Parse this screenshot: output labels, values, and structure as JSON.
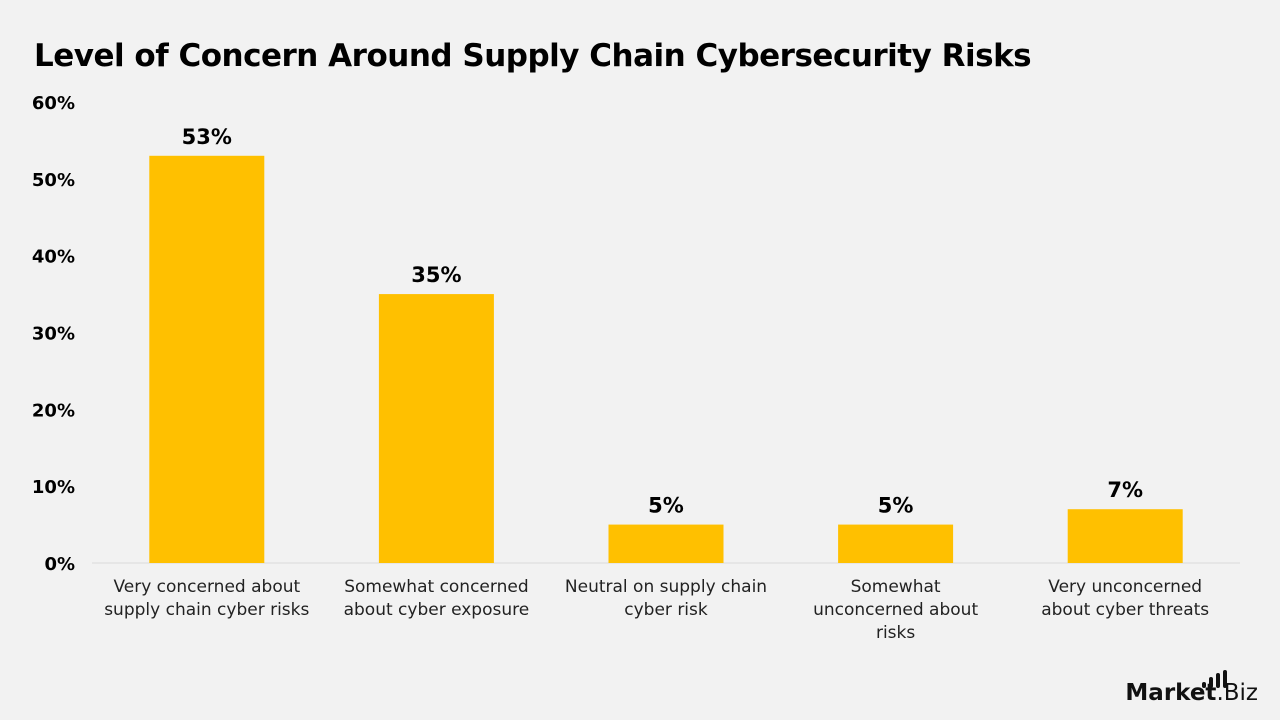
{
  "chart_data": {
    "type": "bar",
    "title": "Level of Concern Around Supply Chain Cybersecurity Risks",
    "categories": [
      [
        "Very concerned about",
        "supply chain cyber risks"
      ],
      [
        "Somewhat concerned",
        "about cyber exposure"
      ],
      [
        "Neutral on supply chain",
        "cyber risk"
      ],
      [
        "Somewhat",
        "unconcerned about",
        "risks"
      ],
      [
        "Very unconcerned",
        "about cyber threats"
      ]
    ],
    "values": [
      53,
      35,
      5,
      5,
      7
    ],
    "data_labels": [
      "53%",
      "35%",
      "5%",
      "5%",
      "7%"
    ],
    "yticks": [
      "0%",
      "10%",
      "20%",
      "30%",
      "40%",
      "50%",
      "60%"
    ],
    "ylim": [
      0,
      60
    ],
    "grid": false,
    "xlabel": "",
    "ylabel": "",
    "bar_color": "#ffc000"
  },
  "logo": {
    "text_bold": "Market",
    "text_regular": ".Biz"
  }
}
